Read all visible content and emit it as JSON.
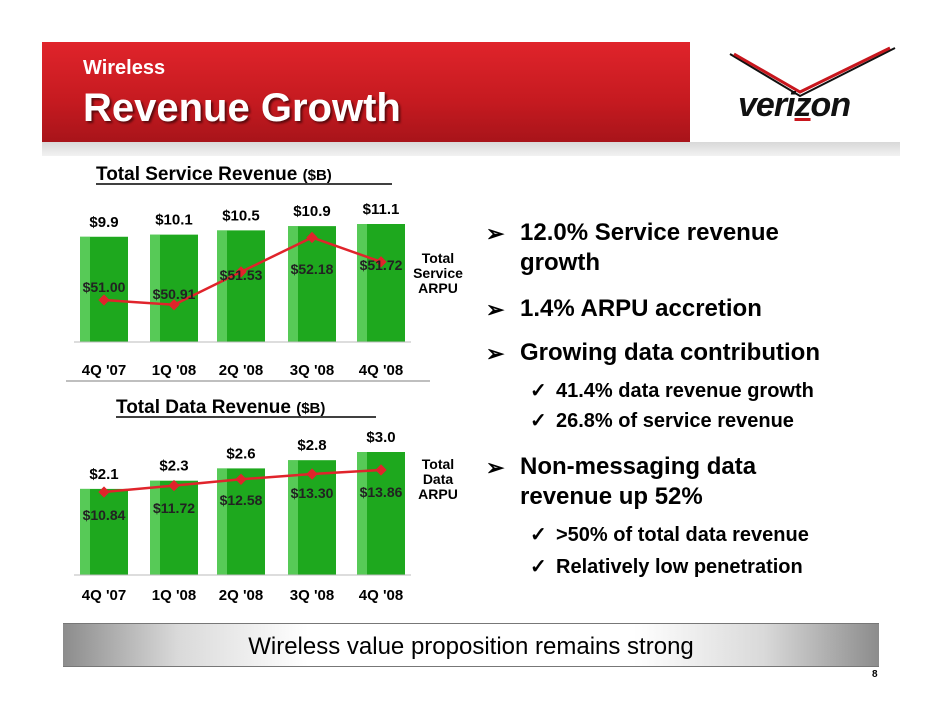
{
  "header": {
    "section": "Wireless",
    "title": "Revenue Growth",
    "logo_text": "verizon"
  },
  "colors": {
    "brand_red": "#c8161d",
    "bar_green": "#1ea81e",
    "line_red": "#e0242b"
  },
  "chart_data": [
    {
      "type": "bar",
      "title": "Total Service Revenue",
      "title_unit": "($B)",
      "categories": [
        "4Q '07",
        "1Q '08",
        "2Q '08",
        "3Q '08",
        "4Q '08"
      ],
      "series": [
        {
          "values": [
            9.9,
            10.1,
            10.5,
            10.9,
            11.1
          ],
          "labels": [
            "$9.9",
            "$10.1",
            "$10.5",
            "$10.9",
            "$11.1"
          ]
        },
        {
          "name": "Total Service ARPU",
          "type": "line",
          "values": [
            51.0,
            50.91,
            51.53,
            52.18,
            51.72
          ],
          "labels": [
            "$51.00",
            "$50.91",
            "$51.53",
            "$52.18",
            "$51.72"
          ]
        }
      ],
      "line_label": [
        "Total",
        "Service",
        "ARPU"
      ]
    },
    {
      "type": "bar",
      "title": "Total Data Revenue",
      "title_unit": "($B)",
      "categories": [
        "4Q '07",
        "1Q '08",
        "2Q '08",
        "3Q '08",
        "4Q '08"
      ],
      "series": [
        {
          "values": [
            2.1,
            2.3,
            2.6,
            2.8,
            3.0
          ],
          "labels": [
            "$2.1",
            "$2.3",
            "$2.6",
            "$2.8",
            "$3.0"
          ]
        },
        {
          "name": "Total Data ARPU",
          "type": "line",
          "values": [
            10.84,
            11.72,
            12.58,
            13.3,
            13.86
          ],
          "labels": [
            "$10.84",
            "$11.72",
            "$12.58",
            "$13.30",
            "$13.86"
          ]
        }
      ],
      "line_label": [
        "Total",
        "Data",
        "ARPU"
      ]
    }
  ],
  "bullets": [
    {
      "level": 1,
      "lines": [
        "12.0% Service revenue",
        "growth"
      ]
    },
    {
      "level": 1,
      "lines": [
        "1.4% ARPU accretion"
      ]
    },
    {
      "level": 1,
      "lines": [
        "Growing data contribution"
      ]
    },
    {
      "level": 2,
      "lines": [
        "41.4% data revenue growth"
      ]
    },
    {
      "level": 2,
      "lines": [
        "26.8% of service revenue"
      ]
    },
    {
      "level": 1,
      "lines": [
        "Non-messaging data",
        "revenue up 52%"
      ]
    },
    {
      "level": 2,
      "lines": [
        ">50% of total data revenue"
      ]
    },
    {
      "level": 2,
      "lines": [
        "Relatively low penetration"
      ]
    }
  ],
  "banner": "Wireless value proposition remains strong",
  "page_number": "8"
}
